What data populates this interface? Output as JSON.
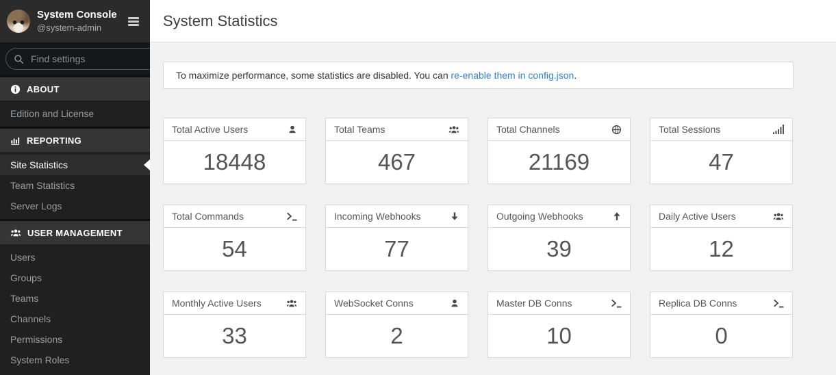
{
  "sidebar": {
    "header": {
      "title": "System Console",
      "subtitle": "@system-admin"
    },
    "search": {
      "placeholder": "Find settings",
      "icon": "search"
    },
    "sections": [
      {
        "label": "ABOUT",
        "icon": "info-circle",
        "items": [
          {
            "label": "Edition and License",
            "active": false
          }
        ]
      },
      {
        "label": "REPORTING",
        "icon": "bar-chart",
        "items": [
          {
            "label": "Site Statistics",
            "active": true
          },
          {
            "label": "Team Statistics",
            "active": false
          },
          {
            "label": "Server Logs",
            "active": false
          }
        ]
      },
      {
        "label": "USER MANAGEMENT",
        "icon": "users",
        "items": [
          {
            "label": "Users",
            "active": false
          },
          {
            "label": "Groups",
            "active": false
          },
          {
            "label": "Teams",
            "active": false
          },
          {
            "label": "Channels",
            "active": false
          },
          {
            "label": "Permissions",
            "active": false
          },
          {
            "label": "System Roles",
            "active": false
          }
        ]
      }
    ]
  },
  "main": {
    "title": "System Statistics",
    "banner": {
      "prefix": "To maximize performance, some statistics are disabled. You can ",
      "link_text": "re-enable them in config.json",
      "suffix": "."
    },
    "stats": [
      {
        "title": "Total Active Users",
        "icon": "user",
        "value": "18448"
      },
      {
        "title": "Total Teams",
        "icon": "users",
        "value": "467"
      },
      {
        "title": "Total Channels",
        "icon": "globe",
        "value": "21169"
      },
      {
        "title": "Total Sessions",
        "icon": "signal",
        "value": "47"
      },
      {
        "title": "Total Commands",
        "icon": "terminal",
        "value": "54"
      },
      {
        "title": "Incoming Webhooks",
        "icon": "arrow-down",
        "value": "77"
      },
      {
        "title": "Outgoing Webhooks",
        "icon": "arrow-up",
        "value": "39"
      },
      {
        "title": "Daily Active Users",
        "icon": "users",
        "value": "12"
      },
      {
        "title": "Monthly Active Users",
        "icon": "users",
        "value": "33"
      },
      {
        "title": "WebSocket Conns",
        "icon": "user",
        "value": "2"
      },
      {
        "title": "Master DB Conns",
        "icon": "terminal",
        "value": "10"
      },
      {
        "title": "Replica DB Conns",
        "icon": "terminal",
        "value": "0"
      }
    ]
  },
  "colors": {
    "link": "#2f81d7",
    "sidebar_header_bg": "#2b2b2b",
    "sidebar_search_bg": "#161719",
    "sidebar_section_bg": "#353535",
    "sidebar_item_bg": "#202020",
    "sidebar_active_bg": "#2e2e2e",
    "content_bg": "#f1f1f1",
    "card_border": "#d8d8d8",
    "value_text": "#555555"
  }
}
